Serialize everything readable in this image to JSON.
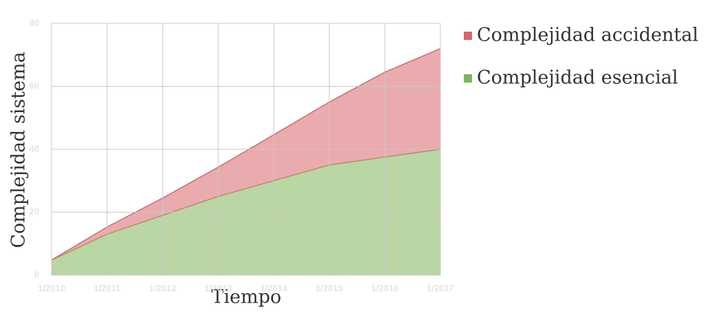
{
  "chart_data": {
    "type": "stacked_area",
    "x_label": "Tiempo",
    "y_label": "Complejidad sistema",
    "categories": [
      "1/2010",
      "1/2011",
      "1/2012",
      "1/2013",
      "1/2014",
      "1/2015",
      "1/2016",
      "1/2017"
    ],
    "series": [
      {
        "name": "Complejidad accidental",
        "color": "#d9666b",
        "values": [
          0,
          2.3,
          5.5,
          9.3,
          14.6,
          20,
          27,
          32
        ]
      },
      {
        "name": "Complejidad esencial",
        "color": "#7fb55a",
        "values": [
          4.8,
          13,
          19,
          25,
          30,
          35,
          37.5,
          40
        ]
      }
    ],
    "stack_order": [
      1,
      0
    ],
    "ylim": [
      0,
      80
    ],
    "yticks": [
      0,
      20,
      40,
      60,
      80
    ],
    "grid": true
  }
}
